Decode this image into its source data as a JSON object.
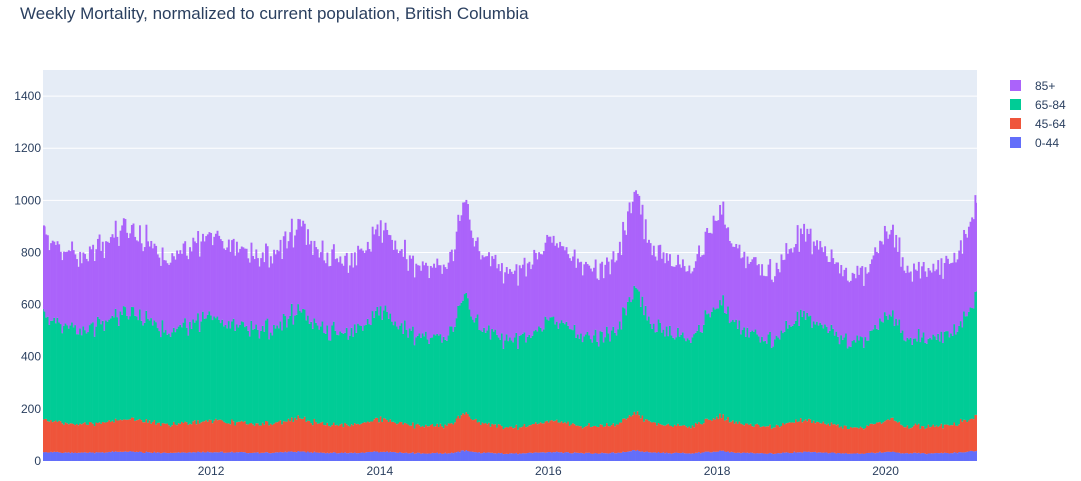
{
  "chart_data": {
    "type": "bar",
    "title": "Weekly Mortality, normalized to current population, British Columbia",
    "stacked": true,
    "x_type": "date",
    "x_start": "2010-01-03",
    "x_end": "2021-01-31",
    "frequency": "weekly",
    "xlim": [
      "2010-01-03",
      "2021-01-31"
    ],
    "ylim": [
      0,
      1500
    ],
    "x_ticks": [
      "2012",
      "2014",
      "2016",
      "2018",
      "2020"
    ],
    "y_ticks": [
      0,
      200,
      400,
      600,
      800,
      1000,
      1200,
      1400
    ],
    "grid": true,
    "legend_position": "top-right",
    "monthly_summary": {
      "months": [
        "2010-01",
        "2010-02",
        "2010-03",
        "2010-04",
        "2010-05",
        "2010-06",
        "2010-07",
        "2010-08",
        "2010-09",
        "2010-10",
        "2010-11",
        "2010-12",
        "2011-01",
        "2011-02",
        "2011-03",
        "2011-04",
        "2011-05",
        "2011-06",
        "2011-07",
        "2011-08",
        "2011-09",
        "2011-10",
        "2011-11",
        "2011-12",
        "2012-01",
        "2012-02",
        "2012-03",
        "2012-04",
        "2012-05",
        "2012-06",
        "2012-07",
        "2012-08",
        "2012-09",
        "2012-10",
        "2012-11",
        "2012-12",
        "2013-01",
        "2013-02",
        "2013-03",
        "2013-04",
        "2013-05",
        "2013-06",
        "2013-07",
        "2013-08",
        "2013-09",
        "2013-10",
        "2013-11",
        "2013-12",
        "2014-01",
        "2014-02",
        "2014-03",
        "2014-04",
        "2014-05",
        "2014-06",
        "2014-07",
        "2014-08",
        "2014-09",
        "2014-10",
        "2014-11",
        "2014-12",
        "2015-01",
        "2015-02",
        "2015-03",
        "2015-04",
        "2015-05",
        "2015-06",
        "2015-07",
        "2015-08",
        "2015-09",
        "2015-10",
        "2015-11",
        "2015-12",
        "2016-01",
        "2016-02",
        "2016-03",
        "2016-04",
        "2016-05",
        "2016-06",
        "2016-07",
        "2016-08",
        "2016-09",
        "2016-10",
        "2016-11",
        "2016-12",
        "2017-01",
        "2017-02",
        "2017-03",
        "2017-04",
        "2017-05",
        "2017-06",
        "2017-07",
        "2017-08",
        "2017-09",
        "2017-10",
        "2017-11",
        "2017-12",
        "2018-01",
        "2018-02",
        "2018-03",
        "2018-04",
        "2018-05",
        "2018-06",
        "2018-07",
        "2018-08",
        "2018-09",
        "2018-10",
        "2018-11",
        "2018-12",
        "2019-01",
        "2019-02",
        "2019-03",
        "2019-04",
        "2019-05",
        "2019-06",
        "2019-07",
        "2019-08",
        "2019-09",
        "2019-10",
        "2019-11",
        "2019-12",
        "2020-01",
        "2020-02",
        "2020-03",
        "2020-04",
        "2020-05",
        "2020-06",
        "2020-07",
        "2020-08",
        "2020-09",
        "2020-10",
        "2020-11",
        "2020-12",
        "2021-01"
      ],
      "totals": [
        860,
        840,
        830,
        800,
        790,
        780,
        800,
        810,
        820,
        840,
        860,
        880,
        900,
        870,
        840,
        820,
        800,
        790,
        780,
        790,
        810,
        830,
        850,
        870,
        860,
        840,
        820,
        810,
        800,
        790,
        770,
        780,
        800,
        820,
        850,
        890,
        930,
        870,
        830,
        810,
        790,
        770,
        760,
        760,
        780,
        800,
        830,
        870,
        910,
        860,
        820,
        790,
        770,
        750,
        740,
        740,
        750,
        770,
        820,
        930,
        980,
        860,
        800,
        770,
        750,
        720,
        710,
        720,
        740,
        780,
        810,
        840,
        870,
        830,
        800,
        780,
        760,
        740,
        730,
        740,
        760,
        790,
        830,
        930,
        1040,
        900,
        830,
        800,
        780,
        760,
        750,
        750,
        760,
        790,
        840,
        920,
        960,
        880,
        840,
        790,
        760,
        740,
        730,
        730,
        740,
        760,
        800,
        840,
        880,
        840,
        810,
        780,
        760,
        740,
        720,
        720,
        710,
        730,
        780,
        830,
        890,
        830,
        760,
        740,
        730,
        720,
        720,
        740,
        750,
        770,
        820,
        880,
        960
      ]
    },
    "series": [
      {
        "name": "85+",
        "color": "#ab63fa",
        "share_of_total": 0.36
      },
      {
        "name": "65-84",
        "color": "#00cc96",
        "share_of_total": 0.46
      },
      {
        "name": "45-64",
        "color": "#ef553b",
        "share_of_total": 0.14
      },
      {
        "name": "0-44",
        "color": "#636efa",
        "share_of_total": 0.04
      }
    ]
  }
}
